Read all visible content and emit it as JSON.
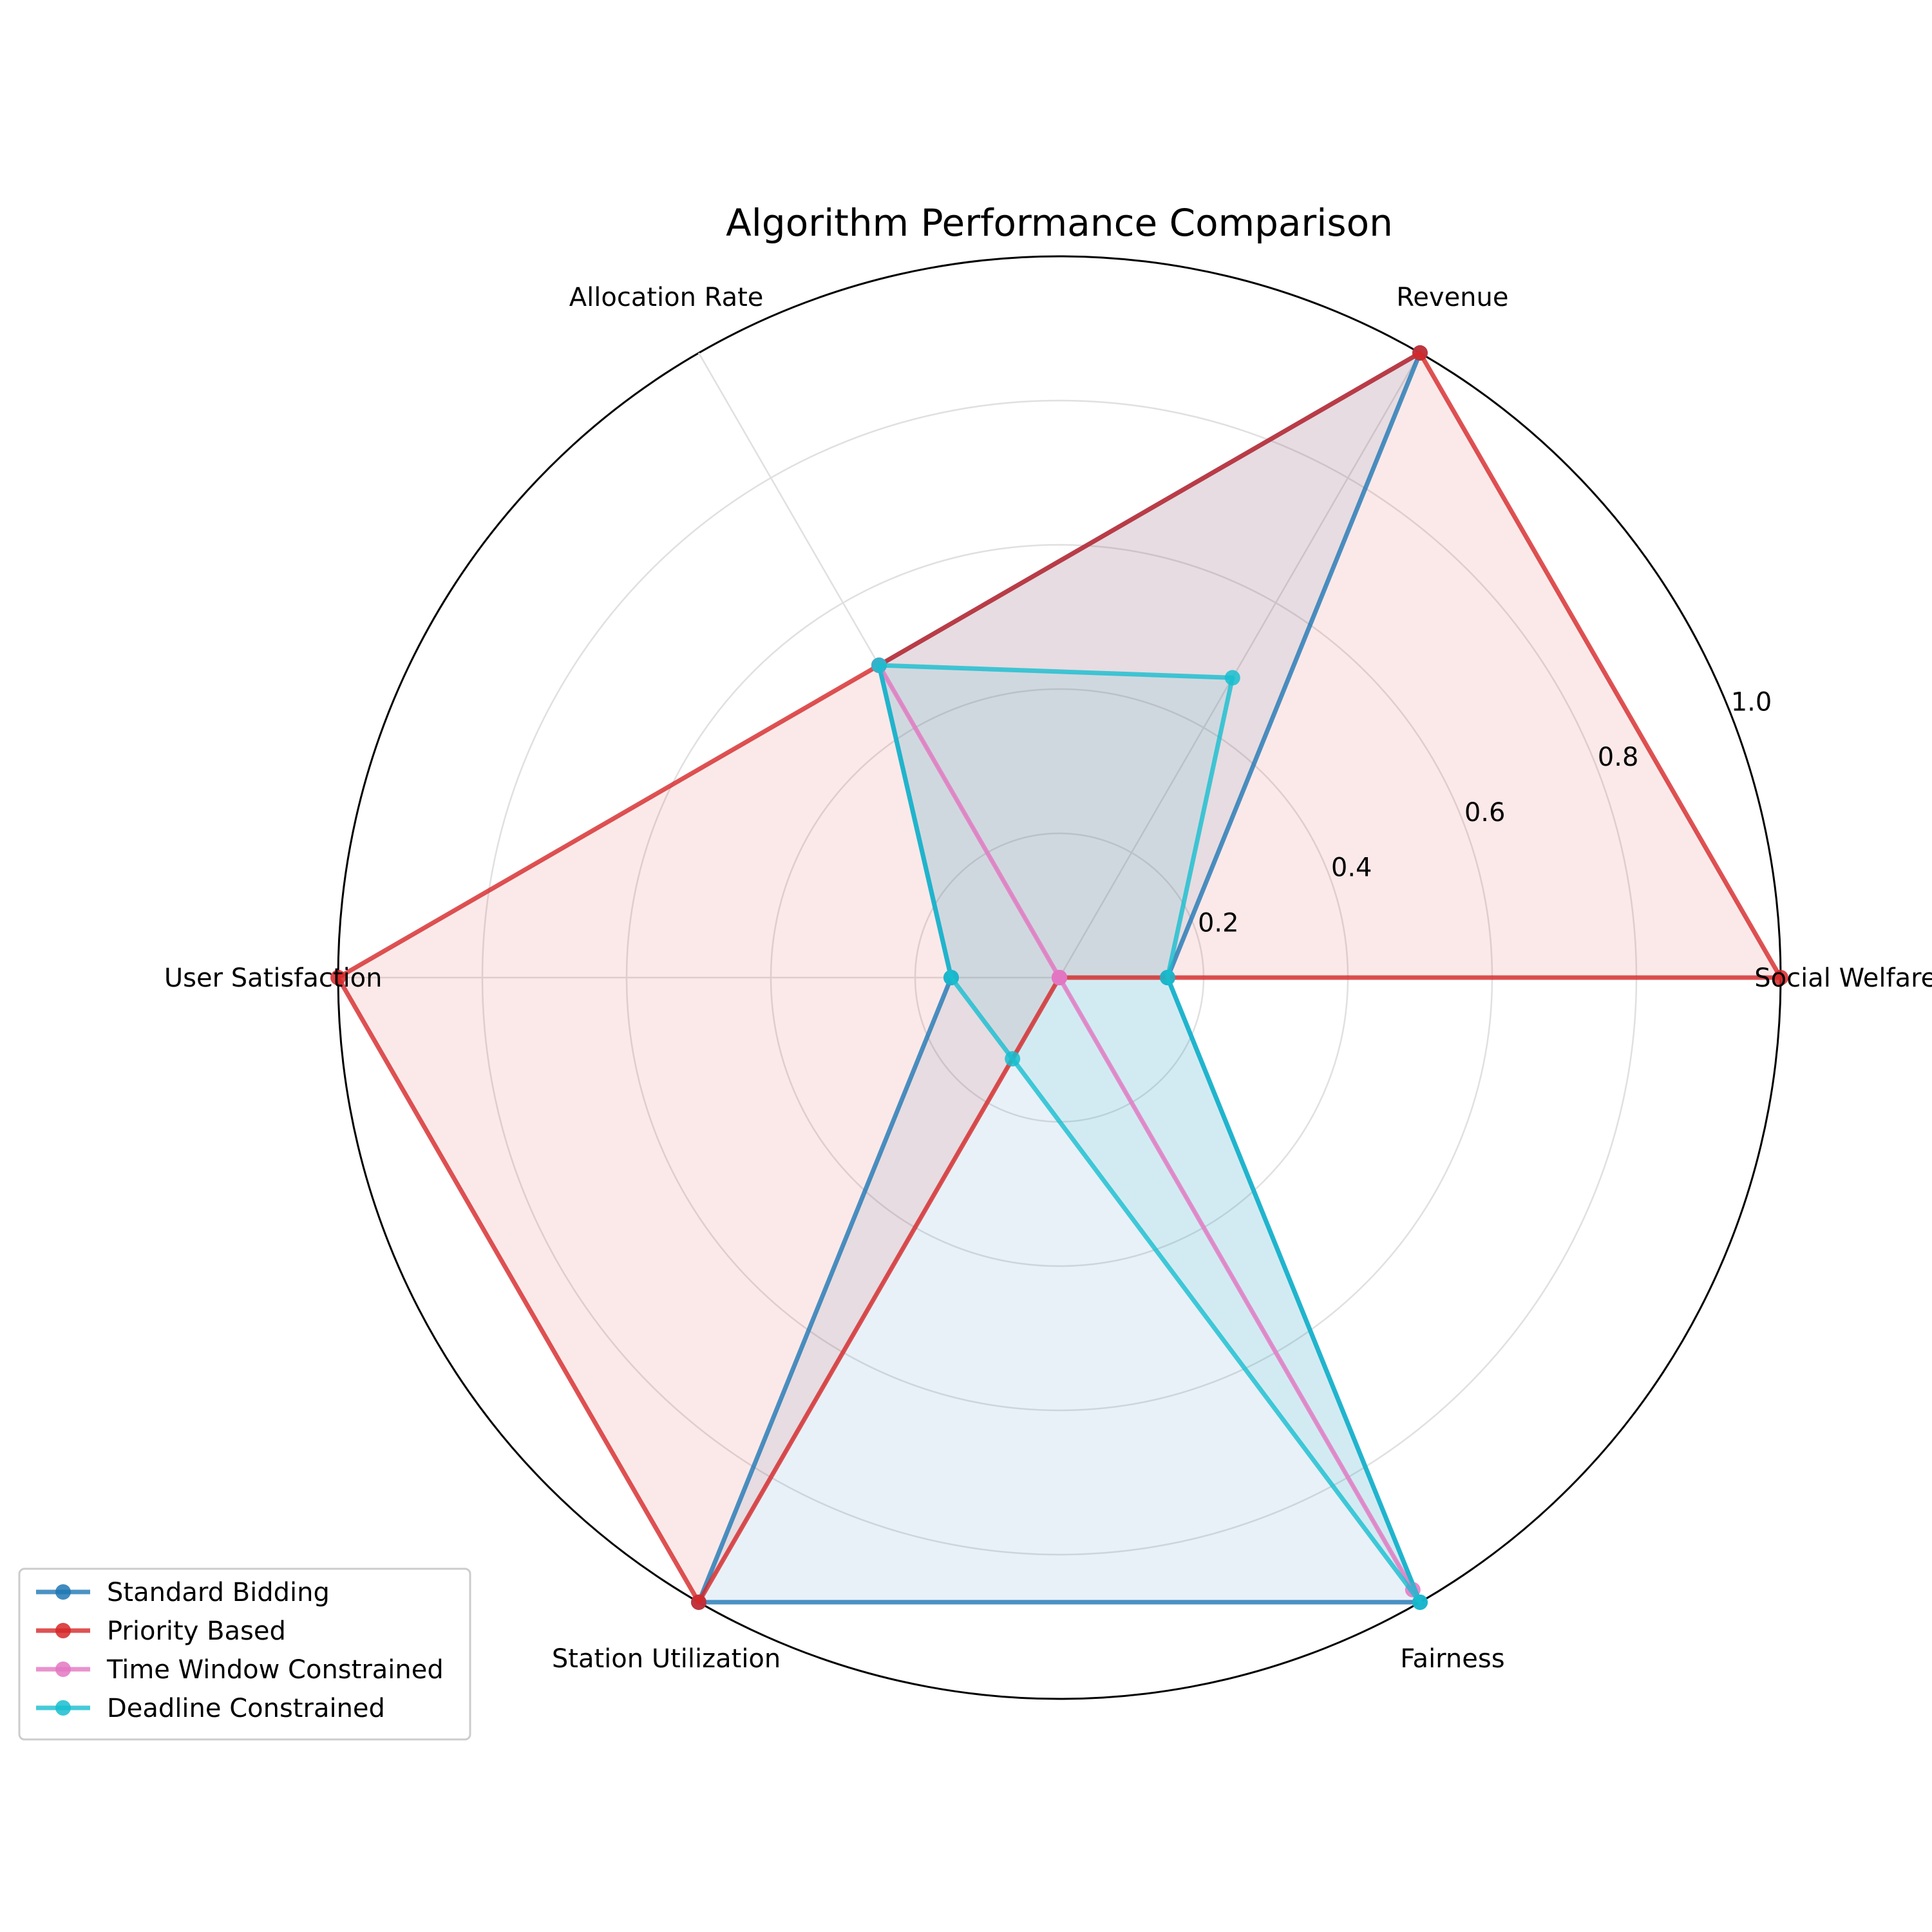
{
  "chart_data": {
    "type": "radar",
    "title": "Algorithm Performance Comparison",
    "axes": [
      "Social Welfare",
      "Revenue",
      "Allocation Rate",
      "User Satisfaction",
      "Station Utilization",
      "Fairness"
    ],
    "radial_ticks": [
      "0.2",
      "0.4",
      "0.6",
      "0.8",
      "1.0"
    ],
    "radial_tick_values": [
      0.2,
      0.4,
      0.6,
      0.8,
      1.0
    ],
    "rlim": [
      0,
      1.0
    ],
    "grid": true,
    "legend_position": "lower-left",
    "series": [
      {
        "name": "Standard Bidding",
        "color": "#1f77b4",
        "values": [
          0.15,
          1.0,
          0.5,
          0.15,
          1.0,
          1.0
        ]
      },
      {
        "name": "Priority Based",
        "color": "#d62728",
        "values": [
          1.0,
          1.0,
          0.5,
          1.0,
          1.0,
          0.0
        ]
      },
      {
        "name": "Time Window Constrained",
        "color": "#e377c2",
        "values": [
          0.0,
          0.0,
          0.5,
          0.0,
          0.0,
          0.98
        ]
      },
      {
        "name": "Deadline Constrained",
        "color": "#17becf",
        "values": [
          0.15,
          0.48,
          0.5,
          0.15,
          0.13,
          1.0
        ]
      }
    ]
  }
}
